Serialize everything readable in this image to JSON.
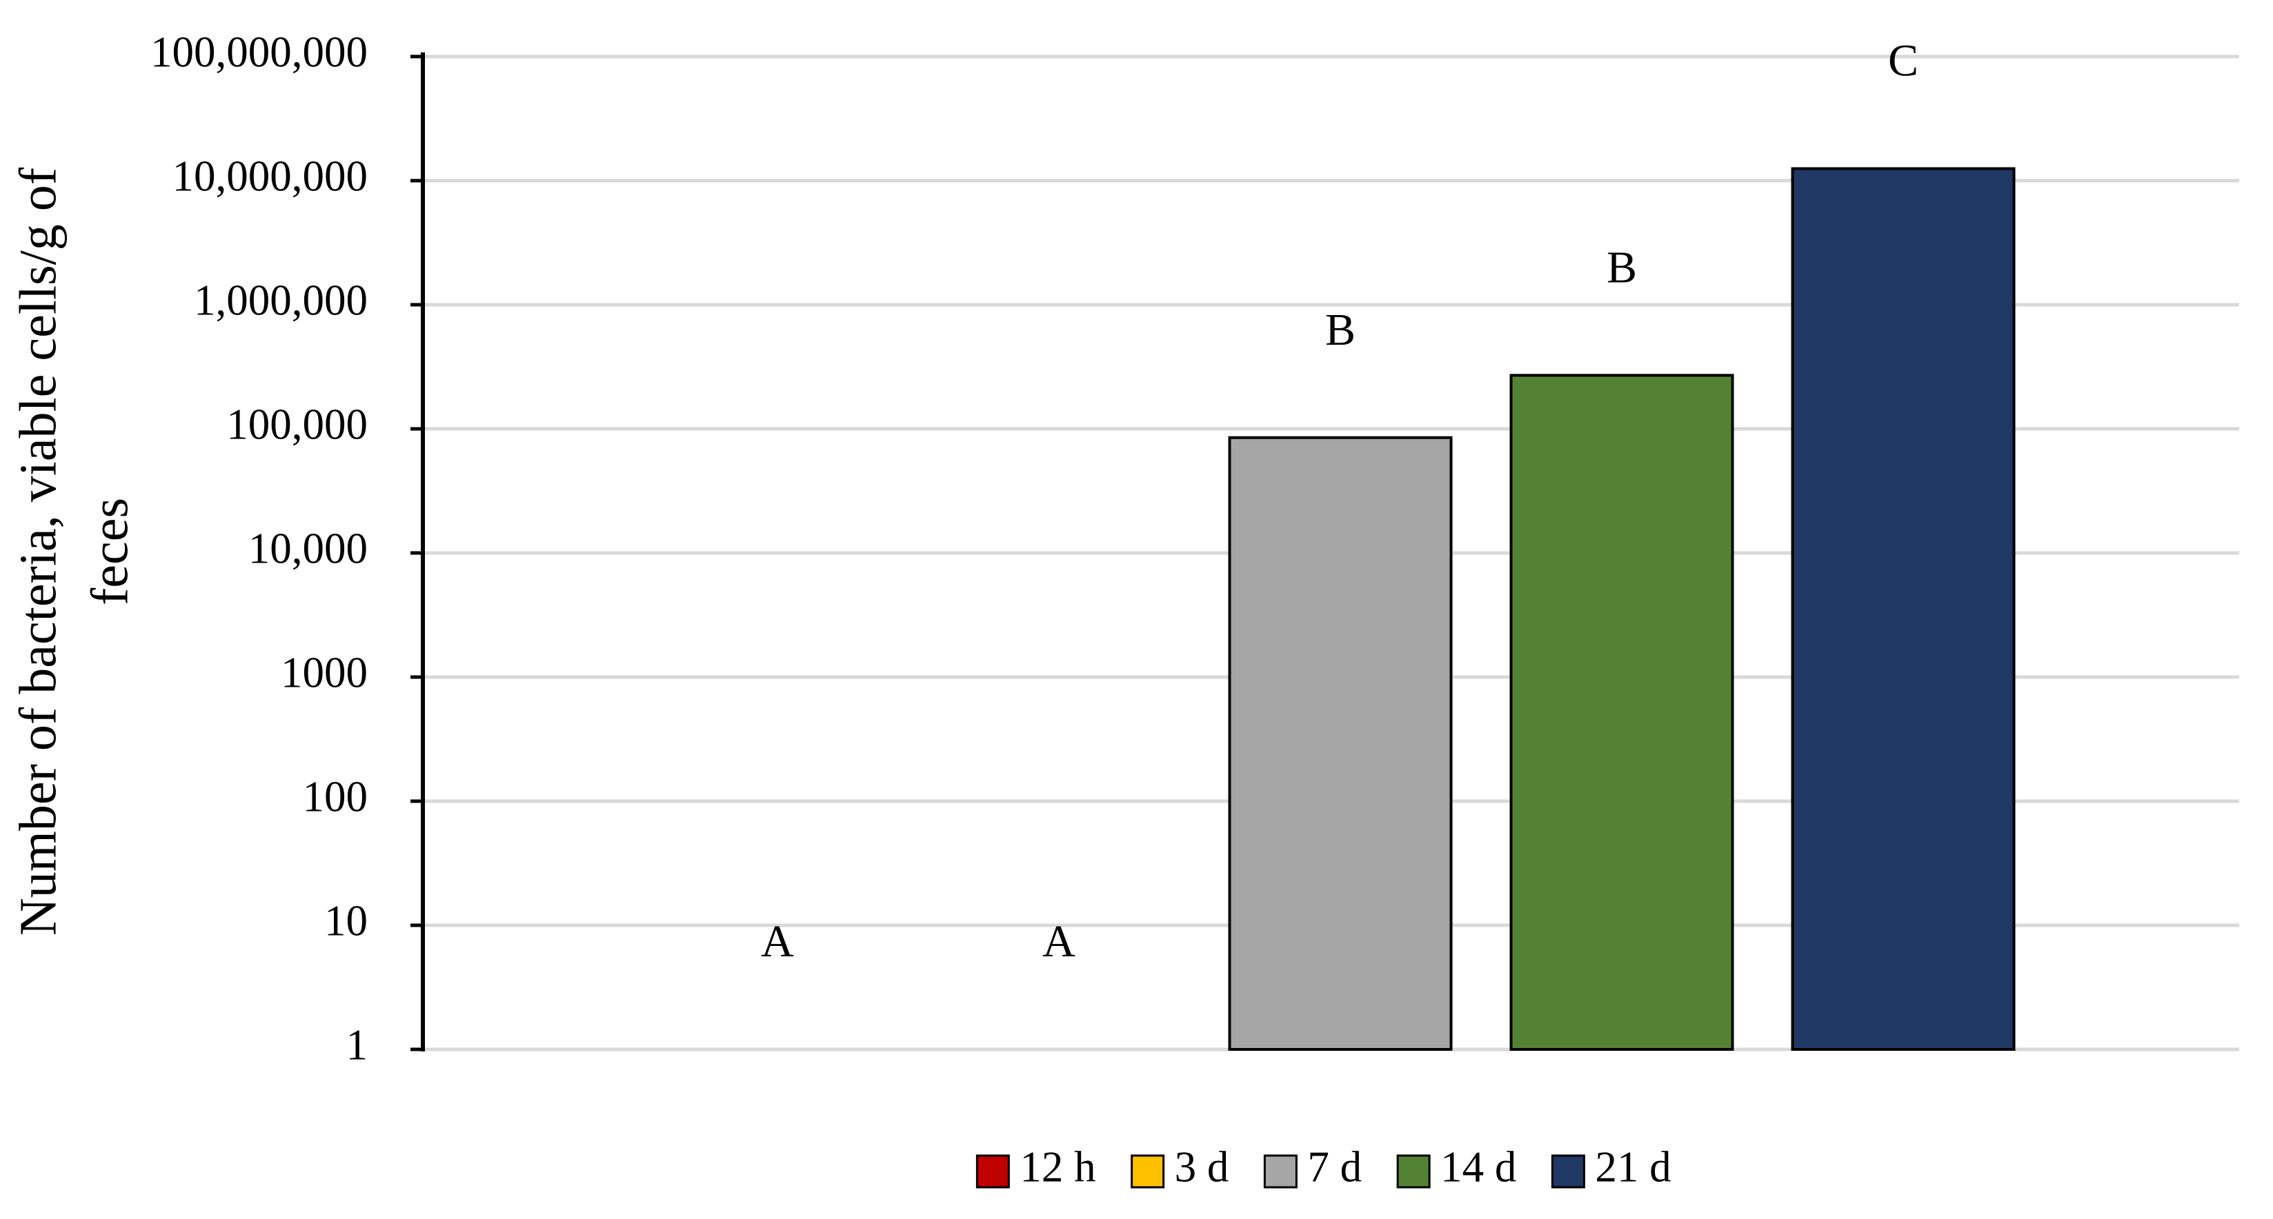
{
  "chart_data": {
    "type": "bar",
    "ylabel": [
      "Number of bacteria, viable cells/g of",
      "feces"
    ],
    "categories": [
      null
    ],
    "series": [
      {
        "name": "12 h",
        "color": "#c00000",
        "values": [
          1
        ],
        "annotation": "A"
      },
      {
        "name": "3 d",
        "color": "#ffc000",
        "values": [
          1
        ],
        "annotation": "A"
      },
      {
        "name": "7 d",
        "color": "#a6a6a6",
        "values": [
          85000
        ],
        "annotation": "B"
      },
      {
        "name": "14 d",
        "color": "#548235",
        "values": [
          270000
        ],
        "annotation": "B"
      },
      {
        "name": "21 d",
        "color": "#203864",
        "values": [
          12500000
        ],
        "annotation": "C"
      }
    ],
    "log_scale": true,
    "ylim": [
      1,
      100000000
    ],
    "yticks": [
      1,
      10,
      100,
      1000,
      {
        "value": 10000,
        "label": "10,000"
      },
      {
        "value": 100000,
        "label": "100,000"
      },
      {
        "value": 1000000,
        "label": "1,000,000"
      },
      {
        "value": 10000000,
        "label": "10,000,000"
      },
      {
        "value": 100000000,
        "label": "100,000,000"
      }
    ],
    "grid": true,
    "legend": "bottom"
  }
}
